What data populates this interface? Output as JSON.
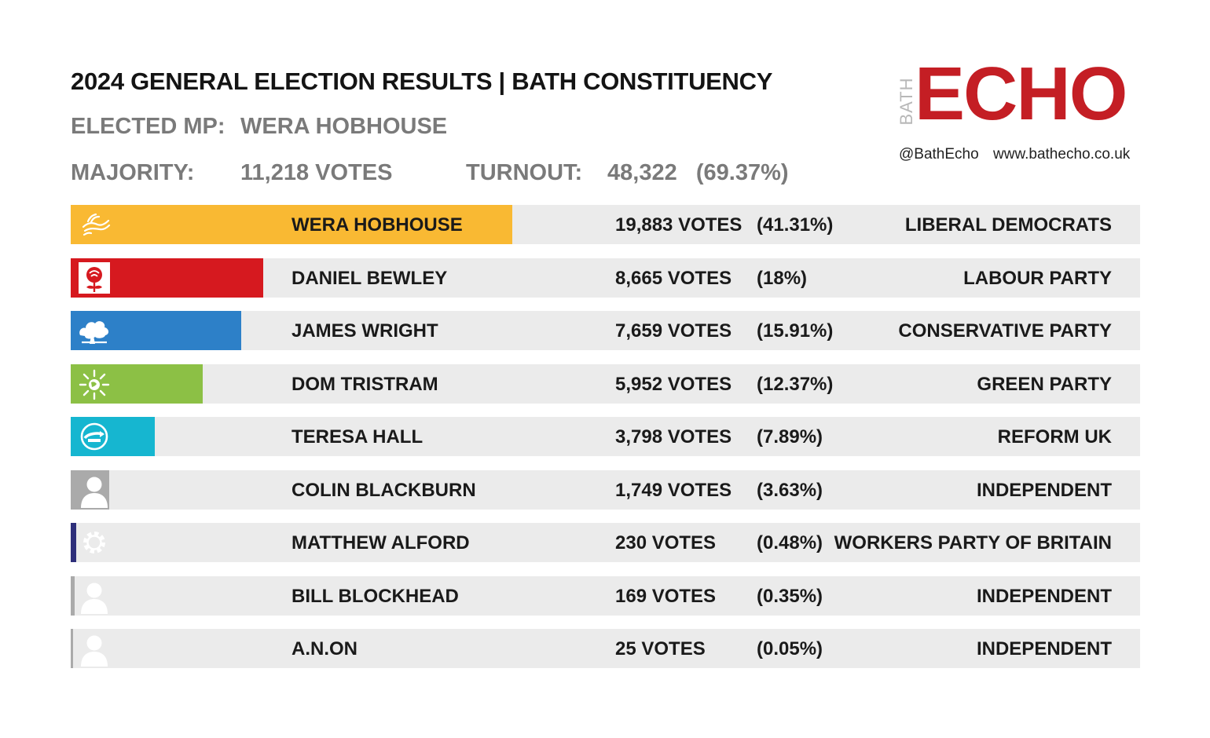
{
  "title": "2024 GENERAL ELECTION RESULTS | BATH CONSTITUENCY",
  "elected_label": "ELECTED MP:",
  "elected_value": "WERA HOBHOUSE",
  "majority_label": "MAJORITY:",
  "majority_value": "11,218 VOTES",
  "turnout_label": "TURNOUT:",
  "turnout_value": "48,322   (69.37%)",
  "logo": {
    "bath": "BATH",
    "echo": "ECHO",
    "handle": "@BathEcho",
    "website": "www.bathecho.co.uk",
    "color": "#c41e24"
  },
  "chart_data": {
    "type": "bar",
    "orientation": "horizontal",
    "title": "2024 GENERAL ELECTION RESULTS | BATH CONSTITUENCY",
    "xlim": [
      0,
      100
    ],
    "rows": [
      {
        "candidate": "WERA HOBHOUSE",
        "votes": 19883,
        "votes_label": "19,883 VOTES",
        "percent": 41.31,
        "pct_label": "(41.31%)",
        "party": "LIBERAL DEMOCRATS",
        "color": "#f9b933",
        "icon": "libdem-bird-icon",
        "name_highlight": true
      },
      {
        "candidate": "DANIEL BEWLEY",
        "votes": 8665,
        "votes_label": "8,665 VOTES",
        "percent": 18,
        "pct_label": "(18%)",
        "party": "LABOUR PARTY",
        "color": "#d6191f",
        "icon": "labour-rose-icon"
      },
      {
        "candidate": "JAMES WRIGHT",
        "votes": 7659,
        "votes_label": "7,659 VOTES",
        "percent": 15.91,
        "pct_label": "(15.91%)",
        "party": "CONSERVATIVE PARTY",
        "color": "#2d80c8",
        "icon": "conservative-tree-icon"
      },
      {
        "candidate": "DOM TRISTRAM",
        "votes": 5952,
        "votes_label": "5,952 VOTES",
        "percent": 12.37,
        "pct_label": "(12.37%)",
        "party": "GREEN PARTY",
        "color": "#8cc045",
        "icon": "green-earth-icon"
      },
      {
        "candidate": "TERESA HALL",
        "votes": 3798,
        "votes_label": "3,798 VOTES",
        "percent": 7.89,
        "pct_label": "(7.89%)",
        "party": "REFORM UK",
        "color": "#16b6d0",
        "icon": "reform-arrow-icon"
      },
      {
        "candidate": "COLIN BLACKBURN",
        "votes": 1749,
        "votes_label": "1,749 VOTES",
        "percent": 3.63,
        "pct_label": "(3.63%)",
        "party": "INDEPENDENT",
        "color": "#aaaaaa",
        "icon": "person-icon"
      },
      {
        "candidate": "MATTHEW ALFORD",
        "votes": 230,
        "votes_label": "230 VOTES",
        "percent": 0.48,
        "pct_label": "(0.48%)",
        "party": "WORKERS PARTY OF BRITAIN",
        "color": "#2e2f7a",
        "icon": "gear-icon"
      },
      {
        "candidate": "BILL BLOCKHEAD",
        "votes": 169,
        "votes_label": "169 VOTES",
        "percent": 0.35,
        "pct_label": "(0.35%)",
        "party": "INDEPENDENT",
        "color": "#aaaaaa",
        "icon": "person-icon"
      },
      {
        "candidate": "A.N.ON",
        "votes": 25,
        "votes_label": "25 VOTES",
        "percent": 0.05,
        "pct_label": "(0.05%)",
        "party": "INDEPENDENT",
        "color": "#aaaaaa",
        "icon": "person-icon"
      }
    ]
  }
}
